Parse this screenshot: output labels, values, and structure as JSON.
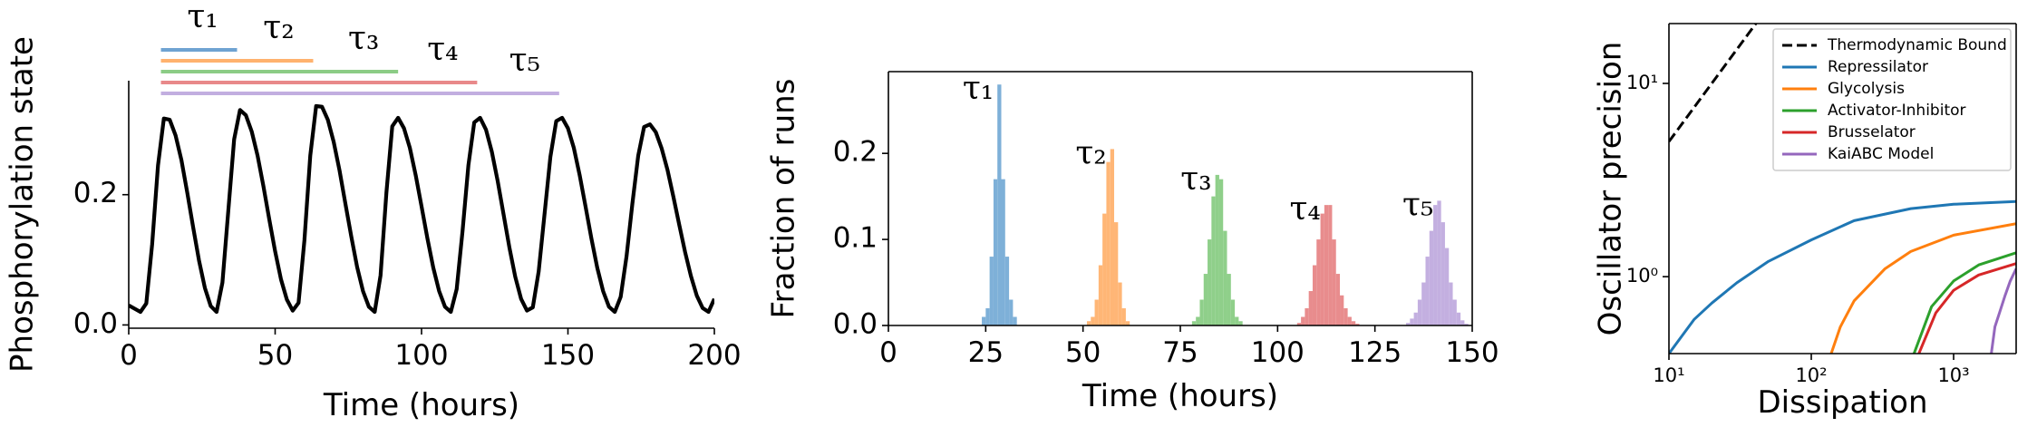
{
  "chart_data": [
    {
      "type": "line",
      "xlabel": "Time (hours)",
      "ylabel": "Phosphorylation state",
      "xlim": [
        0,
        200
      ],
      "ylim": [
        -0.005,
        0.375
      ],
      "xticks": [
        0,
        50,
        100,
        150,
        200
      ],
      "yticks": [
        {
          "value": 0,
          "label": "0.0"
        },
        {
          "value": 0.2,
          "label": "0.2"
        }
      ],
      "x": [
        0,
        2,
        4,
        6,
        8,
        10,
        12,
        14,
        16,
        18,
        20,
        22,
        24,
        26,
        28,
        30,
        32,
        34,
        36,
        38,
        40,
        42,
        44,
        46,
        48,
        50,
        52,
        54,
        56,
        58,
        60,
        62,
        64,
        66,
        68,
        70,
        72,
        74,
        76,
        78,
        80,
        82,
        84,
        86,
        88,
        90,
        92,
        94,
        96,
        98,
        100,
        102,
        104,
        106,
        108,
        110,
        112,
        114,
        116,
        118,
        120,
        122,
        124,
        126,
        128,
        130,
        132,
        134,
        136,
        138,
        140,
        142,
        144,
        146,
        148,
        150,
        152,
        154,
        156,
        158,
        160,
        162,
        164,
        166,
        168,
        170,
        172,
        174,
        176,
        178,
        180,
        182,
        184,
        186,
        188,
        190,
        192,
        194,
        196,
        198,
        200
      ],
      "series": [
        {
          "color": "#000000",
          "values": [
            0.03,
            0.025,
            0.02,
            0.033,
            0.124,
            0.245,
            0.317,
            0.315,
            0.291,
            0.253,
            0.203,
            0.15,
            0.099,
            0.057,
            0.029,
            0.02,
            0.065,
            0.175,
            0.285,
            0.33,
            0.322,
            0.297,
            0.26,
            0.213,
            0.162,
            0.113,
            0.07,
            0.039,
            0.022,
            0.034,
            0.13,
            0.26,
            0.336,
            0.335,
            0.315,
            0.281,
            0.237,
            0.186,
            0.136,
            0.089,
            0.052,
            0.028,
            0.02,
            0.076,
            0.203,
            0.305,
            0.318,
            0.302,
            0.272,
            0.23,
            0.182,
            0.133,
            0.088,
            0.052,
            0.028,
            0.02,
            0.055,
            0.144,
            0.245,
            0.311,
            0.318,
            0.3,
            0.266,
            0.221,
            0.17,
            0.119,
            0.074,
            0.04,
            0.022,
            0.027,
            0.082,
            0.17,
            0.258,
            0.313,
            0.318,
            0.302,
            0.272,
            0.23,
            0.182,
            0.133,
            0.088,
            0.052,
            0.028,
            0.02,
            0.043,
            0.105,
            0.186,
            0.26,
            0.304,
            0.308,
            0.296,
            0.271,
            0.238,
            0.197,
            0.154,
            0.112,
            0.075,
            0.045,
            0.026,
            0.02,
            0.04
          ]
        }
      ],
      "spans": [
        {
          "label": "τ₁",
          "start": 11,
          "end": 37,
          "color": "#6fa3d2"
        },
        {
          "label": "τ₂",
          "start": 11,
          "end": 63,
          "color": "#ffb26e"
        },
        {
          "label": "τ₃",
          "start": 11,
          "end": 92,
          "color": "#8ccc86"
        },
        {
          "label": "τ₄",
          "start": 11,
          "end": 119,
          "color": "#e8898a"
        },
        {
          "label": "τ₅",
          "start": 11,
          "end": 147,
          "color": "#c2aee0"
        }
      ]
    },
    {
      "type": "histogram",
      "xlabel": "Time (hours)",
      "ylabel": "Fraction of runs",
      "xlim": [
        0,
        150
      ],
      "ylim": [
        0,
        0.295
      ],
      "xticks": [
        0,
        25,
        50,
        75,
        100,
        125,
        150
      ],
      "yticks": [
        {
          "value": 0,
          "label": "0.0"
        },
        {
          "value": 0.1,
          "label": "0.1"
        },
        {
          "value": 0.2,
          "label": "0.2"
        }
      ],
      "series": [
        {
          "name": "τ₁",
          "color": "#7eb0d8",
          "bins": [
            24,
            25,
            26,
            27,
            28,
            29,
            30,
            31,
            32,
            33
          ],
          "values": [
            0.01,
            0.02,
            0.08,
            0.17,
            0.28,
            0.17,
            0.08,
            0.03,
            0.01
          ]
        },
        {
          "name": "τ₂",
          "color": "#ffb676",
          "bins": [
            51,
            52,
            53,
            54,
            55,
            56,
            57,
            58,
            59,
            60,
            61,
            62
          ],
          "values": [
            0.005,
            0.01,
            0.03,
            0.07,
            0.13,
            0.19,
            0.205,
            0.12,
            0.05,
            0.02,
            0.005
          ]
        },
        {
          "name": "τ₃",
          "color": "#8fcf8a",
          "bins": [
            78,
            79,
            80,
            81,
            82,
            83,
            84,
            85,
            86,
            87,
            88,
            89,
            90,
            91
          ],
          "values": [
            0.005,
            0.01,
            0.03,
            0.06,
            0.1,
            0.15,
            0.175,
            0.17,
            0.11,
            0.06,
            0.03,
            0.01,
            0.005
          ]
        },
        {
          "name": "τ₄",
          "color": "#e88c8d",
          "bins": [
            105,
            106,
            107,
            108,
            109,
            110,
            111,
            112,
            113,
            114,
            115,
            116,
            117,
            118,
            119,
            120,
            121
          ],
          "values": [
            0.003,
            0.01,
            0.02,
            0.04,
            0.07,
            0.1,
            0.13,
            0.14,
            0.14,
            0.1,
            0.06,
            0.035,
            0.02,
            0.01,
            0.005,
            0.002
          ]
        },
        {
          "name": "τ₅",
          "color": "#c3afe0",
          "bins": [
            133,
            134,
            135,
            136,
            137,
            138,
            139,
            140,
            141,
            142,
            143,
            144,
            145,
            146,
            147,
            148,
            149
          ],
          "values": [
            0.003,
            0.008,
            0.015,
            0.03,
            0.05,
            0.08,
            0.11,
            0.14,
            0.145,
            0.12,
            0.09,
            0.05,
            0.03,
            0.015,
            0.006,
            0.002
          ]
        }
      ]
    },
    {
      "type": "line",
      "xlabel": "Dissipation",
      "ylabel": "Oscillator precision",
      "xscale": "log",
      "yscale": "log",
      "legend": "upper right",
      "xlim": [
        10,
        2750
      ],
      "ylim": [
        0.4,
        20.4
      ],
      "xticks": [
        {
          "value": 10,
          "label": "10¹"
        },
        {
          "value": 100,
          "label": "10²"
        },
        {
          "value": 1000,
          "label": "10³"
        }
      ],
      "yticks": [
        {
          "value": 1,
          "label": "10⁰"
        },
        {
          "value": 10,
          "label": "10¹"
        }
      ],
      "series": [
        {
          "name": "Thermodynamic Bound",
          "color": "#000000",
          "linestyle": "dashed",
          "x": [
            10,
            20,
            30,
            40,
            50
          ],
          "values": [
            5,
            10,
            15,
            20,
            25
          ]
        },
        {
          "name": "Repressilator",
          "color": "#1f77b4",
          "x": [
            10,
            15,
            20,
            30,
            50,
            100,
            200,
            500,
            1000,
            2750
          ],
          "values": [
            0.4,
            0.6,
            0.73,
            0.93,
            1.2,
            1.55,
            1.95,
            2.25,
            2.37,
            2.45
          ]
        },
        {
          "name": "Glycolysis",
          "color": "#ff7f0e",
          "x": [
            138,
            160,
            200,
            330,
            500,
            1000,
            2750
          ],
          "values": [
            0.4,
            0.55,
            0.75,
            1.1,
            1.35,
            1.64,
            1.88
          ]
        },
        {
          "name": "Activator-Inhibitor",
          "color": "#2ca02c",
          "x": [
            527,
            700,
            1000,
            1500,
            2750
          ],
          "values": [
            0.4,
            0.7,
            0.95,
            1.15,
            1.33
          ]
        },
        {
          "name": "Brusselator",
          "color": "#d62728",
          "x": [
            570,
            750,
            1000,
            1500,
            2750
          ],
          "values": [
            0.4,
            0.65,
            0.85,
            1.02,
            1.17
          ]
        },
        {
          "name": "KaiABC Model",
          "color": "#9467bd",
          "x": [
            1840,
            1950,
            2100,
            2300,
            2500,
            2750
          ],
          "values": [
            0.4,
            0.55,
            0.65,
            0.8,
            0.95,
            1.1
          ]
        }
      ]
    }
  ]
}
